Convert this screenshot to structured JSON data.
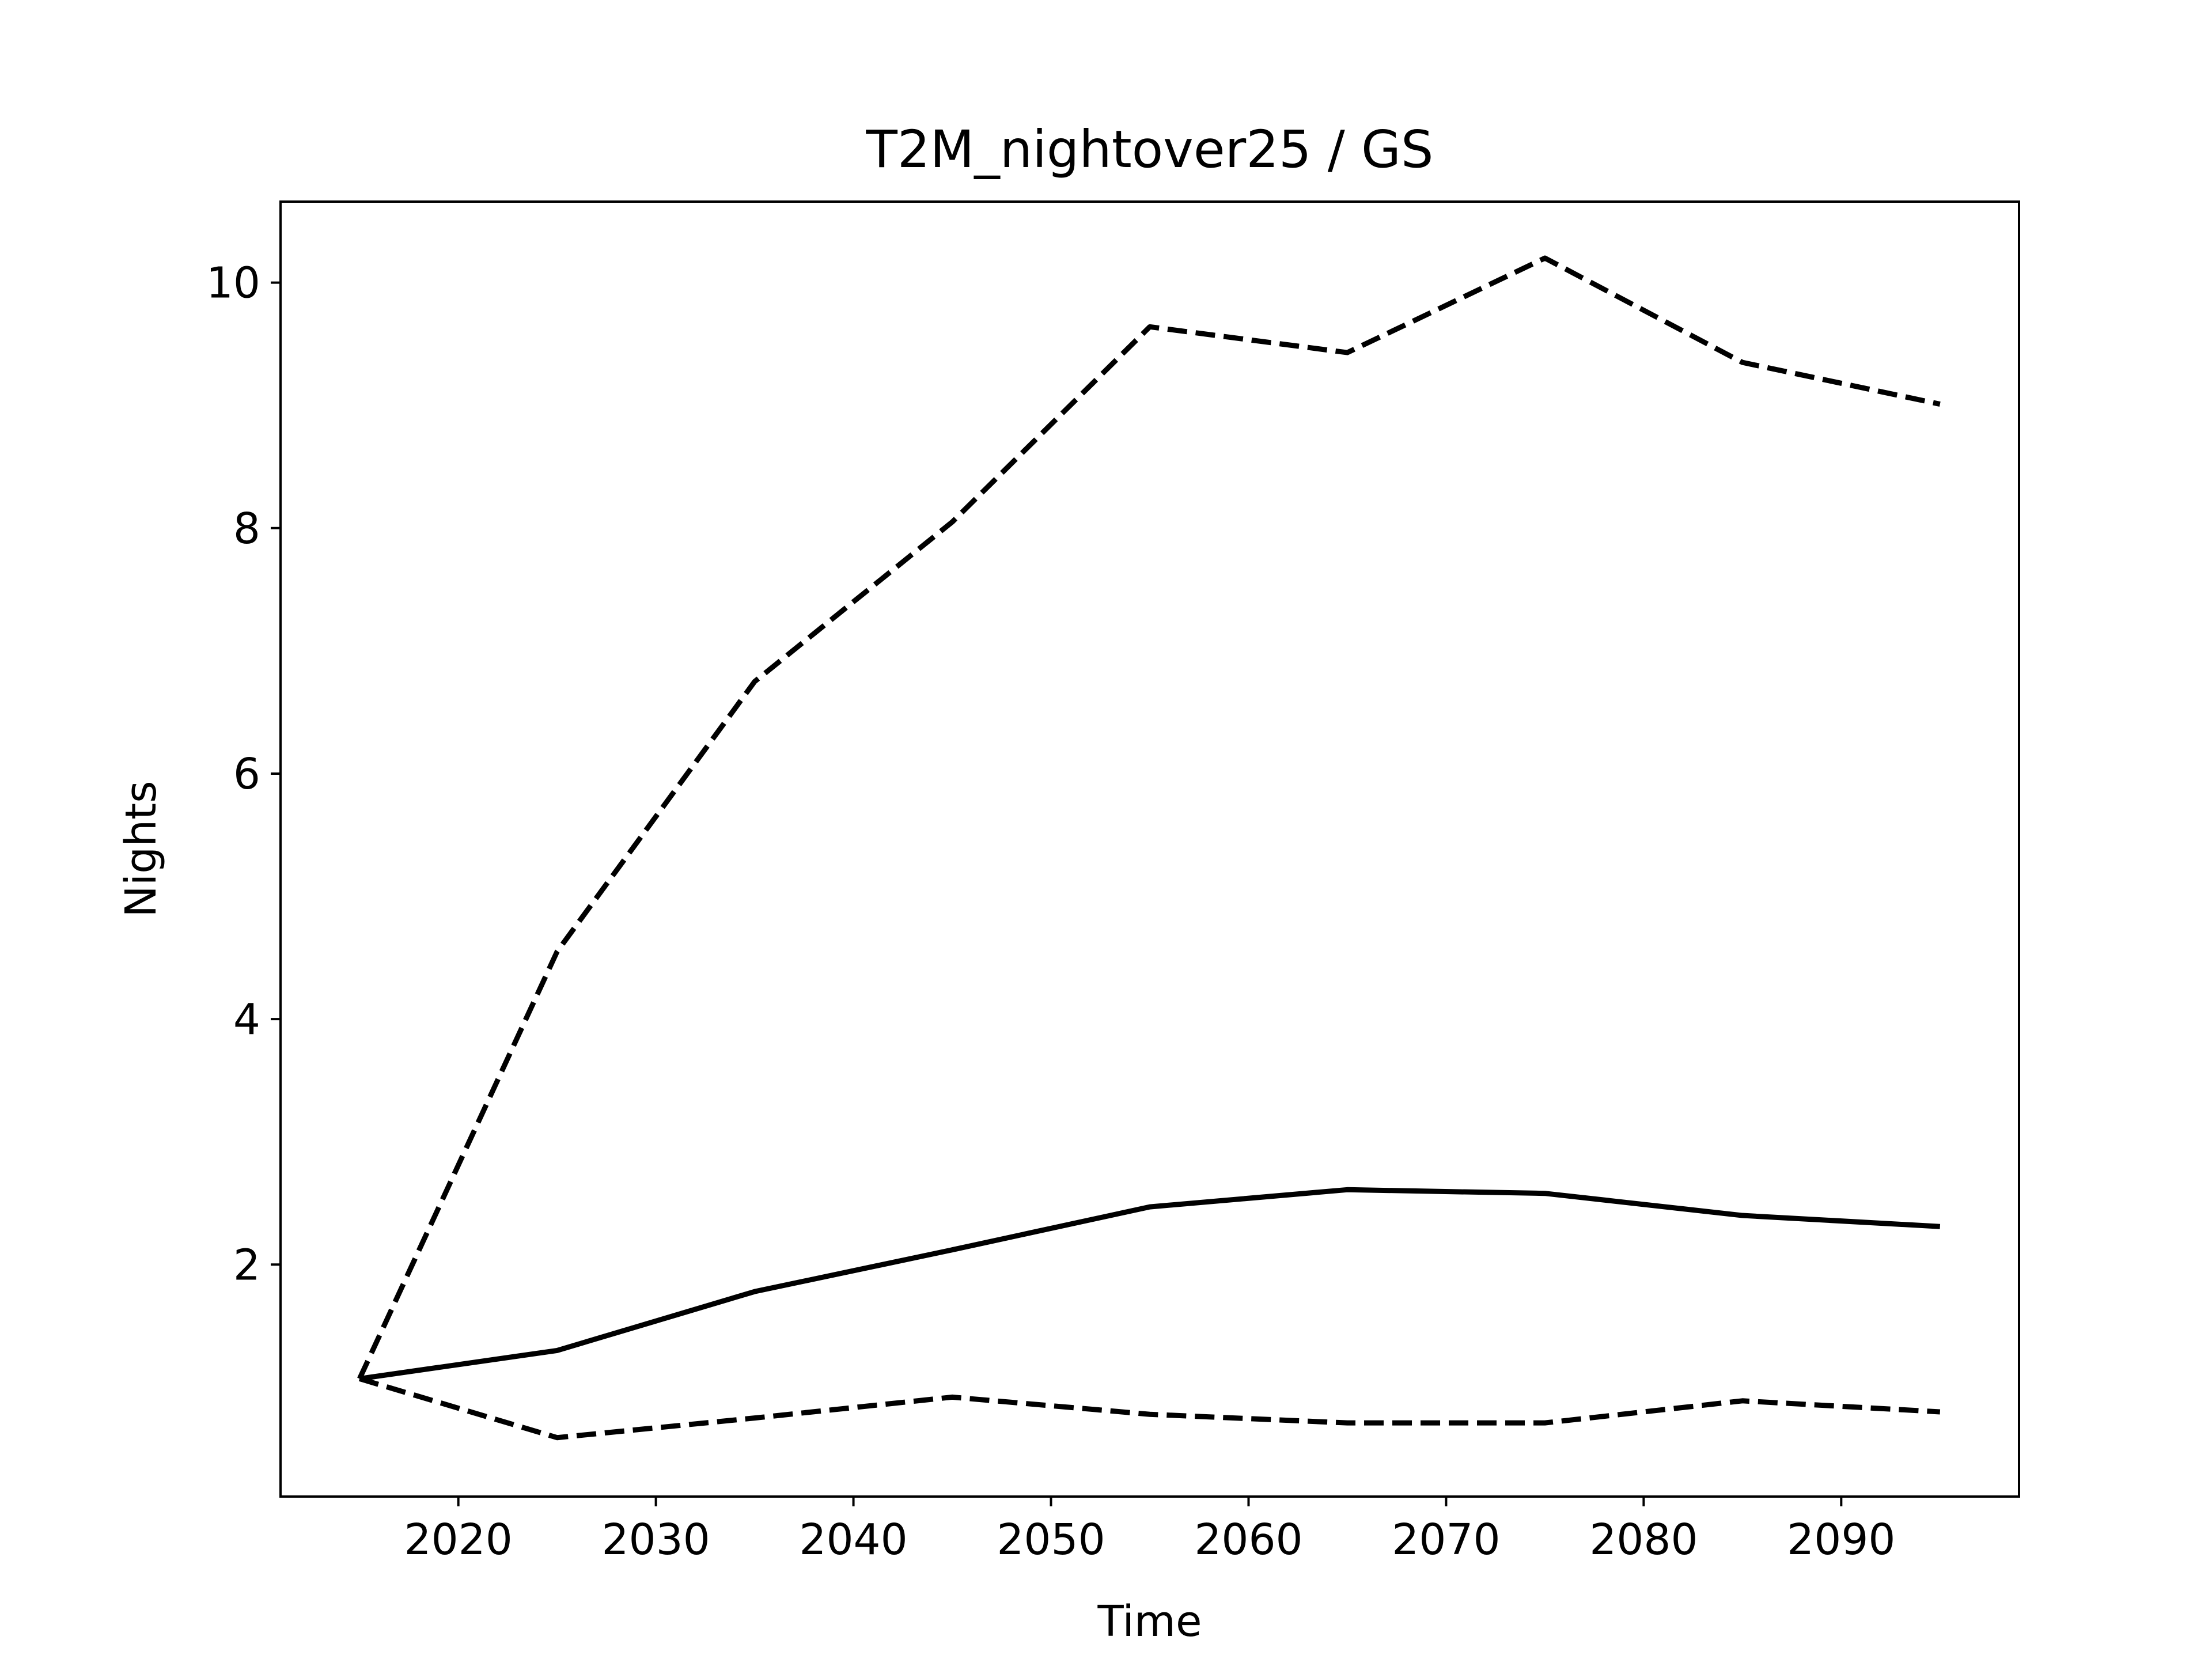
{
  "chart_data": {
    "type": "line",
    "title": "T2M_nightover25 / GS",
    "x_label": "Time",
    "y_label": "Nights",
    "x": [
      2015,
      2025,
      2035,
      2045,
      2055,
      2065,
      2075,
      2085,
      2095
    ],
    "series": [
      {
        "color": "#000000",
        "linestyle": "solid",
        "values": [
          1.07,
          1.3,
          1.78,
          2.12,
          2.47,
          2.61,
          2.58,
          2.4,
          2.31
        ]
      },
      {
        "color": "#000000",
        "linestyle": "dashed",
        "values": [
          1.07,
          4.55,
          6.75,
          8.05,
          9.64,
          9.43,
          10.2,
          9.35,
          9.01
        ]
      },
      {
        "color": "#000000",
        "linestyle": "dashed",
        "values": [
          1.07,
          0.59,
          0.75,
          0.92,
          0.78,
          0.71,
          0.71,
          0.89,
          0.8
        ]
      }
    ],
    "xlim": [
      2011,
      2099
    ],
    "xticks": [
      2020,
      2030,
      2040,
      2050,
      2060,
      2070,
      2080,
      2090
    ],
    "ylim": [
      0.11,
      10.66
    ],
    "yticks": [
      2,
      4,
      6,
      8,
      10
    ],
    "grid": false
  }
}
